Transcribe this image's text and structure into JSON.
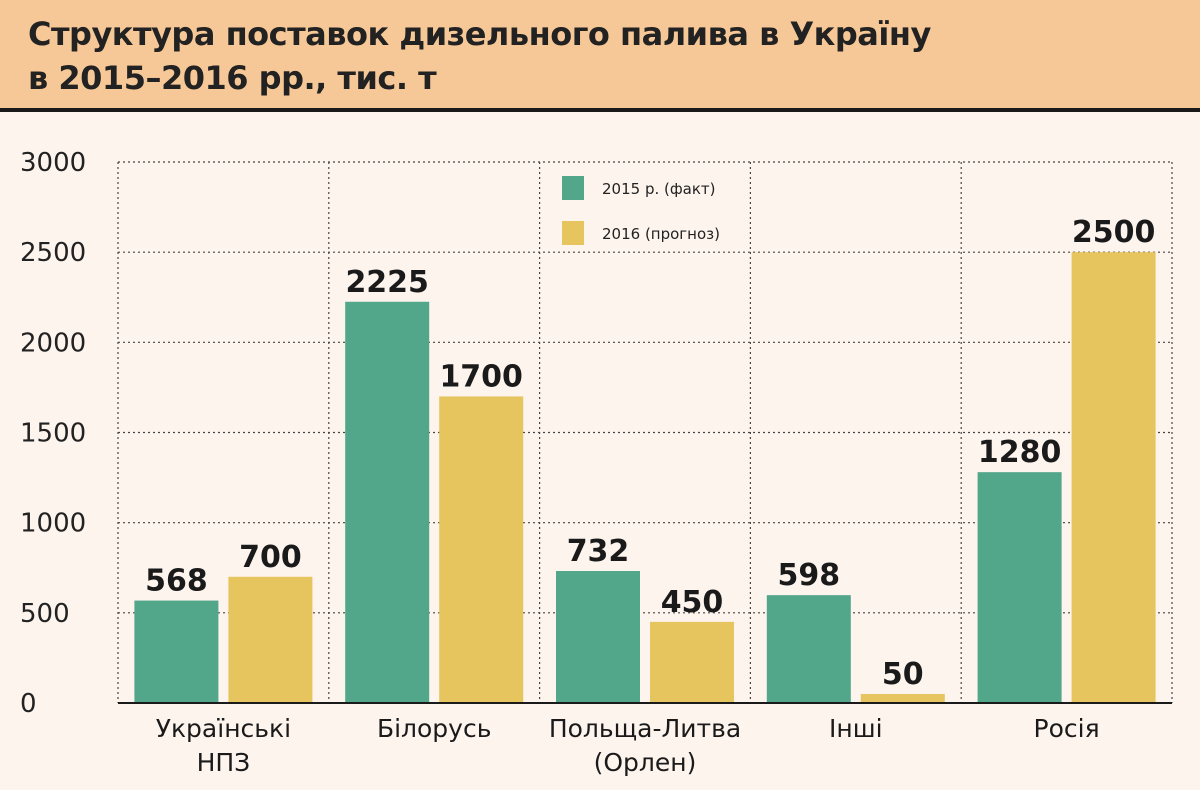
{
  "chart_data": {
    "type": "bar",
    "title": "Структура поставок дизельного палива в Україну\nв 2015–2016 рр., тис. т",
    "categories": [
      [
        "Українські",
        "НПЗ"
      ],
      [
        "Білорусь"
      ],
      [
        "Польща-Литва",
        "(Орлен)"
      ],
      [
        "Інші"
      ],
      [
        "Росія"
      ]
    ],
    "series": [
      {
        "name": "2015 р. (факт)",
        "color": "#52a689",
        "values": [
          568,
          2225,
          732,
          598,
          1280
        ]
      },
      {
        "name": "2016 (прогноз)",
        "color": "#e6c45e",
        "values": [
          700,
          1700,
          450,
          50,
          2500
        ]
      }
    ],
    "ylim": [
      0,
      3000
    ],
    "yticks": [
      0,
      500,
      1000,
      1500,
      2000,
      2500,
      3000
    ],
    "grid": true,
    "legend_position": "top-center"
  }
}
